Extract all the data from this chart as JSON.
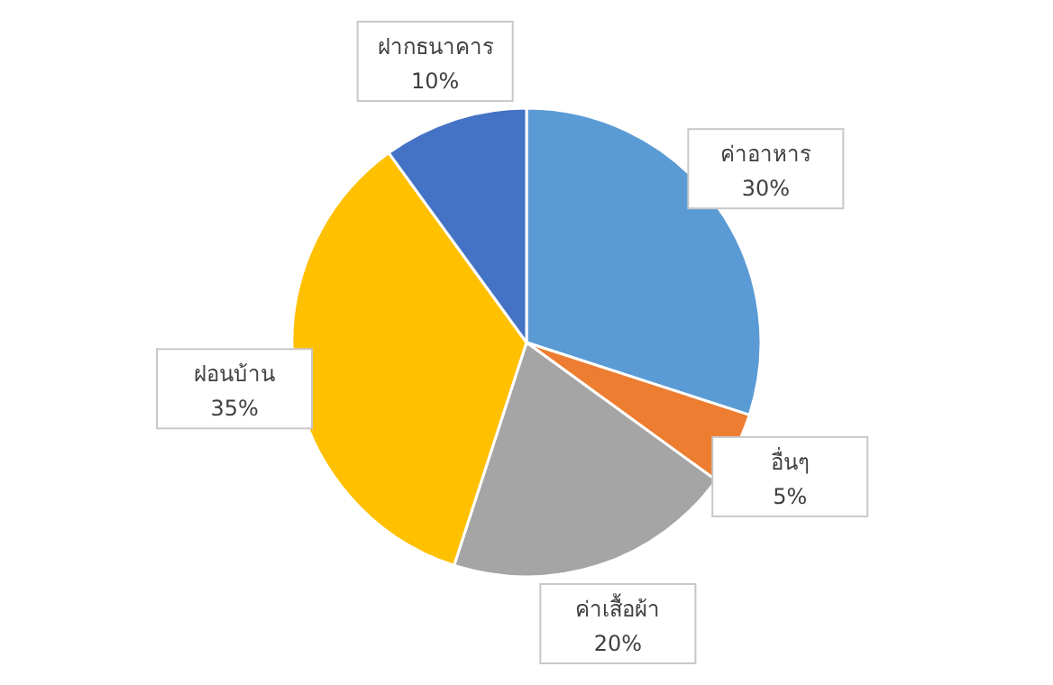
{
  "chart_data": {
    "type": "pie",
    "categories": [
      "ค่าอาหาร",
      "อื่นๆ",
      "ค่าเสื้อผ้า",
      "ฝอนบ้าน",
      "ฝากธนาคาร"
    ],
    "values": [
      30,
      5,
      20,
      35,
      10
    ],
    "value_labels": [
      "30%",
      "5%",
      "20%",
      "35%",
      "10%"
    ],
    "colors": [
      "#5b9bd5",
      "#ed7d31",
      "#a5a5a5",
      "#ffc000",
      "#4472c4"
    ]
  }
}
